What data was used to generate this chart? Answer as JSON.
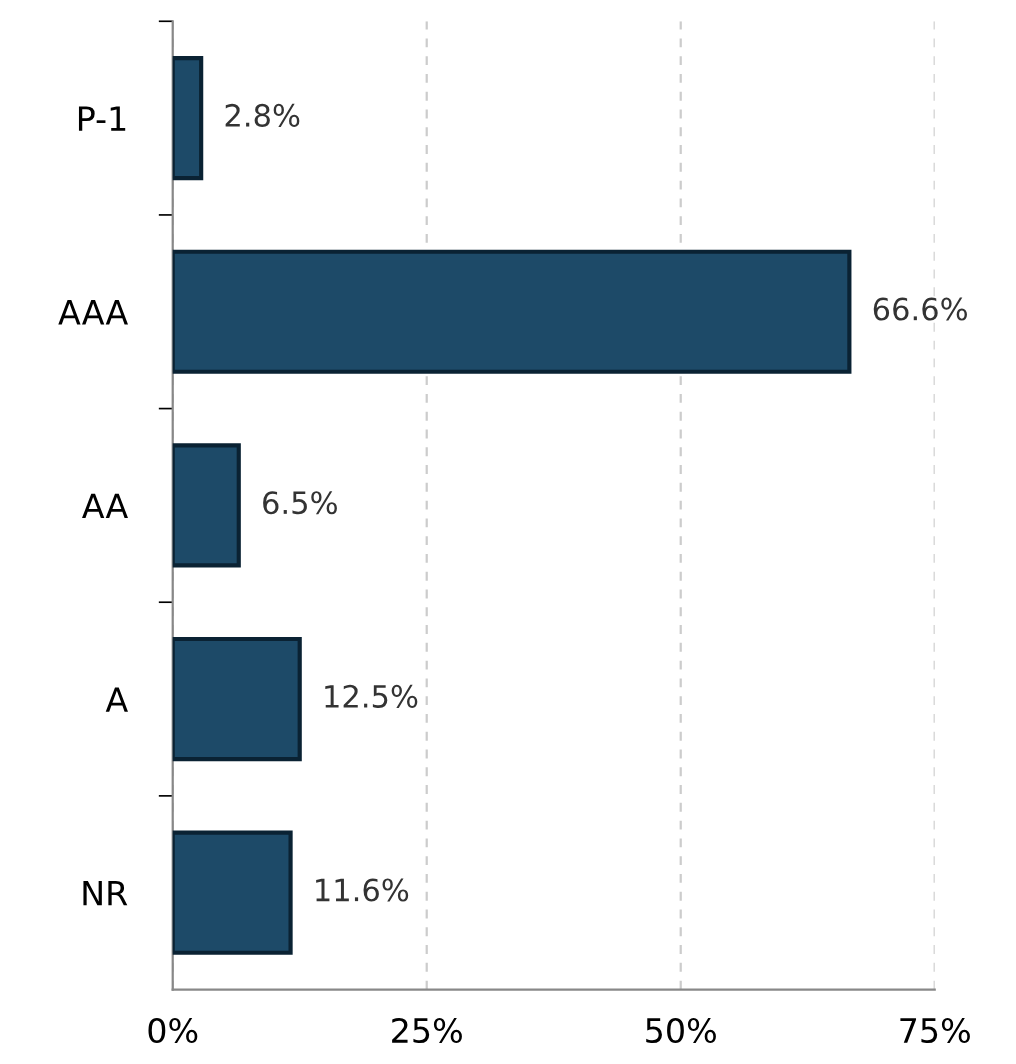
{
  "chart_data": {
    "type": "bar",
    "orientation": "horizontal",
    "categories": [
      "P-1",
      "AAA",
      "AA",
      "A",
      "NR"
    ],
    "values": [
      2.8,
      66.6,
      6.5,
      12.5,
      11.6
    ],
    "value_labels": [
      "2.8%",
      "66.6%",
      "6.5%",
      "12.5%",
      "11.6%"
    ],
    "color": "#1d4a68",
    "xlim": [
      0,
      75
    ],
    "xticks": [
      {
        "value": 0,
        "label": "0%"
      },
      {
        "value": 25,
        "label": "25%"
      },
      {
        "value": 50,
        "label": "50%"
      },
      {
        "value": 75,
        "label": "75%"
      }
    ],
    "grid": "x"
  }
}
